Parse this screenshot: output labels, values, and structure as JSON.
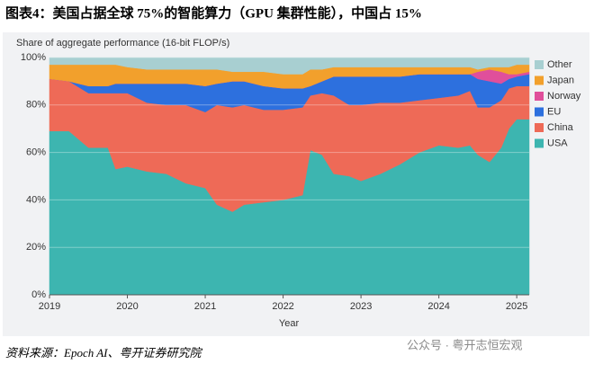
{
  "chart_data": {
    "type": "stacked-area",
    "title": "图表4：美国占据全球 75%的智能算力（GPU 集群性能），中国占 15%",
    "ylabel": "Share of aggregate performance (16-bit FLOP/s)",
    "xlabel": "Year",
    "x": [
      2019,
      2019.25,
      2019.5,
      2019.75,
      2019.85,
      2020,
      2020.25,
      2020.5,
      2020.75,
      2021,
      2021.15,
      2021.35,
      2021.5,
      2021.75,
      2022,
      2022.25,
      2022.35,
      2022.5,
      2022.65,
      2022.85,
      2023,
      2023.25,
      2023.5,
      2023.75,
      2024,
      2024.25,
      2024.4,
      2024.5,
      2024.65,
      2024.8,
      2024.9,
      2025,
      2025.16
    ],
    "series": [
      {
        "name": "USA",
        "color": "#3db5b0",
        "values": [
          69,
          69,
          62,
          62,
          53,
          54,
          52,
          51,
          47,
          45,
          38,
          35,
          38,
          39,
          40,
          42,
          61,
          59,
          51,
          50,
          48,
          51,
          55,
          60,
          63,
          62,
          63,
          59,
          56,
          62,
          70,
          74,
          74
        ]
      },
      {
        "name": "China",
        "color": "#ee6a57",
        "values": [
          22,
          21,
          23,
          23,
          32,
          31,
          29,
          29,
          33,
          32,
          42,
          44,
          42,
          39,
          38,
          37,
          23,
          26,
          33,
          30,
          32,
          30,
          26,
          22,
          20,
          22,
          23,
          20,
          23,
          20,
          17,
          14,
          14
        ]
      },
      {
        "name": "EU",
        "color": "#2d70de",
        "values": [
          0,
          0,
          3,
          3,
          4,
          4,
          8,
          9,
          9,
          11,
          9,
          11,
          10,
          10,
          9,
          8,
          4,
          5,
          8,
          12,
          12,
          11,
          11,
          11,
          10,
          9,
          7,
          12,
          11,
          7,
          4,
          4,
          5
        ]
      },
      {
        "name": "Norway",
        "color": "#e04f9b",
        "values": [
          0,
          0,
          0,
          0,
          0,
          0,
          0,
          0,
          0,
          0,
          0,
          0,
          0,
          0,
          0,
          0,
          0,
          0,
          0,
          0,
          0,
          0,
          0,
          0,
          0,
          0,
          0,
          3,
          5,
          5,
          2,
          1,
          1
        ]
      },
      {
        "name": "Japan",
        "color": "#f2a02c",
        "values": [
          6,
          7,
          9,
          9,
          8,
          7,
          6,
          6,
          6,
          7,
          6,
          4,
          4,
          6,
          6,
          6,
          7,
          5,
          4,
          4,
          4,
          4,
          4,
          3,
          3,
          3,
          3,
          1,
          1,
          2,
          3,
          4,
          3
        ]
      },
      {
        "name": "Other",
        "color": "#a8cfd1",
        "values": [
          3,
          3,
          3,
          3,
          3,
          4,
          5,
          5,
          5,
          5,
          5,
          6,
          6,
          6,
          7,
          7,
          5,
          5,
          4,
          4,
          4,
          4,
          4,
          4,
          4,
          4,
          4,
          5,
          4,
          4,
          4,
          3,
          3
        ]
      }
    ],
    "xlim": [
      2019,
      2025.16
    ],
    "ylim": [
      0,
      100
    ],
    "xticks": [
      2019,
      2020,
      2021,
      2022,
      2023,
      2024,
      2025
    ],
    "yticks": [
      {
        "value": 0,
        "label": "0%"
      },
      {
        "value": 20,
        "label": "20%"
      },
      {
        "value": 40,
        "label": "40%"
      },
      {
        "value": 60,
        "label": "60%"
      },
      {
        "value": 80,
        "label": "80%"
      },
      {
        "value": 100,
        "label": "100%"
      }
    ],
    "grid": true,
    "legend": "right"
  },
  "source": "资料来源：Epoch AI、粤开证券研究院",
  "watermark": "公众号 · 粤开志恒宏观"
}
